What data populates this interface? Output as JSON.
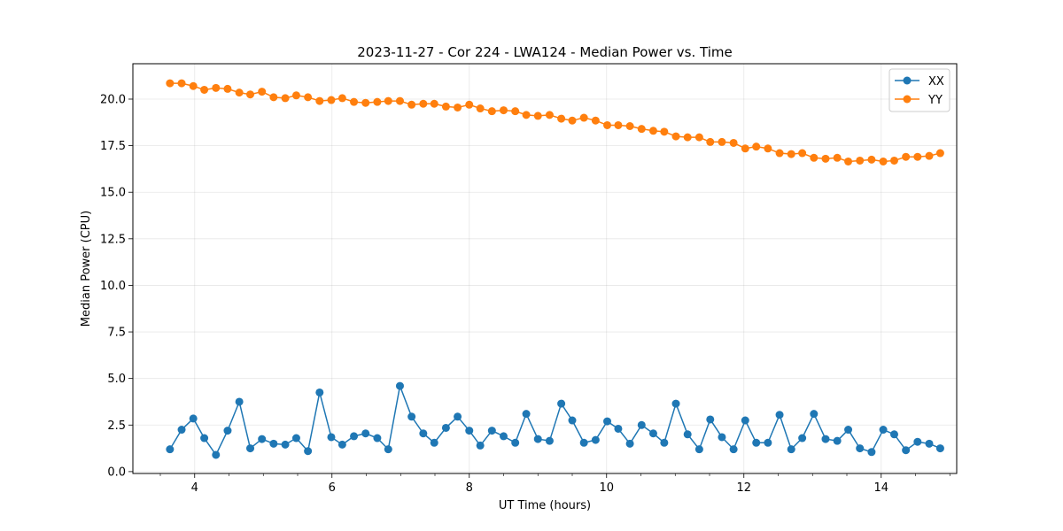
{
  "chart_data": {
    "type": "line",
    "title": "2023-11-27 - Cor 224 - LWA124 - Median Power vs. Time",
    "xlabel": "UT Time (hours)",
    "ylabel": "Median Power (CPU)",
    "xlim": [
      3.1,
      15.1
    ],
    "ylim": [
      -0.1,
      21.9
    ],
    "xticks": [
      4,
      6,
      8,
      10,
      12,
      14
    ],
    "xtick_labels": [
      "4",
      "6",
      "8",
      "10",
      "12",
      "14"
    ],
    "xminor_step": 0.5,
    "yticks": [
      0,
      2.5,
      5,
      7.5,
      10,
      12.5,
      15,
      17.5,
      20
    ],
    "ytick_labels": [
      "0.0",
      "2.5",
      "5.0",
      "7.5",
      "10.0",
      "12.5",
      "15.0",
      "17.5",
      "20.0"
    ],
    "grid": true,
    "legend_position": "top-right",
    "x": [
      3.64,
      3.81,
      3.98,
      4.14,
      4.31,
      4.48,
      4.65,
      4.81,
      4.98,
      5.15,
      5.32,
      5.48,
      5.65,
      5.82,
      5.99,
      6.15,
      6.32,
      6.49,
      6.66,
      6.82,
      6.99,
      7.16,
      7.33,
      7.49,
      7.66,
      7.83,
      8.0,
      8.16,
      8.33,
      8.5,
      8.67,
      8.83,
      9.0,
      9.17,
      9.34,
      9.5,
      9.67,
      9.84,
      10.01,
      10.17,
      10.34,
      10.51,
      10.68,
      10.84,
      11.01,
      11.18,
      11.35,
      11.51,
      11.68,
      11.85,
      12.02,
      12.18,
      12.35,
      12.52,
      12.69,
      12.85,
      13.02,
      13.19,
      13.36,
      13.52,
      13.69,
      13.86,
      14.03,
      14.19,
      14.36,
      14.53,
      14.7,
      14.86
    ],
    "series": [
      {
        "name": "XX",
        "color": "#1f77b4",
        "values": [
          1.2,
          2.25,
          2.85,
          1.8,
          0.9,
          2.2,
          3.75,
          1.25,
          1.75,
          1.5,
          1.45,
          1.8,
          1.1,
          4.25,
          1.85,
          1.45,
          1.9,
          2.05,
          1.8,
          1.2,
          4.6,
          2.95,
          2.05,
          1.55,
          2.35,
          2.95,
          2.2,
          1.4,
          2.2,
          1.9,
          1.55,
          3.1,
          1.75,
          1.65,
          3.65,
          2.75,
          1.55,
          1.7,
          2.7,
          2.3,
          1.5,
          2.5,
          2.05,
          1.55,
          3.65,
          2.0,
          1.2,
          2.8,
          1.85,
          1.2,
          2.75,
          1.55,
          1.55,
          3.05,
          1.2,
          1.8,
          3.1,
          1.75,
          1.65,
          2.25,
          1.25,
          1.05,
          2.25,
          2.0,
          1.15,
          1.6,
          1.5,
          1.25
        ]
      },
      {
        "name": "YY",
        "color": "#ff7f0e",
        "values": [
          20.85,
          20.85,
          20.7,
          20.5,
          20.6,
          20.55,
          20.35,
          20.25,
          20.4,
          20.1,
          20.05,
          20.2,
          20.1,
          19.9,
          19.95,
          20.05,
          19.85,
          19.8,
          19.85,
          19.9,
          19.9,
          19.7,
          19.75,
          19.75,
          19.6,
          19.55,
          19.7,
          19.5,
          19.35,
          19.4,
          19.35,
          19.15,
          19.1,
          19.15,
          18.95,
          18.85,
          19.0,
          18.85,
          18.6,
          18.6,
          18.55,
          18.4,
          18.3,
          18.25,
          18.0,
          17.95,
          17.95,
          17.7,
          17.7,
          17.65,
          17.35,
          17.45,
          17.35,
          17.1,
          17.05,
          17.1,
          16.85,
          16.8,
          16.85,
          16.65,
          16.7,
          16.75,
          16.65,
          16.7,
          16.9,
          16.9,
          16.95,
          17.1
        ]
      }
    ]
  }
}
